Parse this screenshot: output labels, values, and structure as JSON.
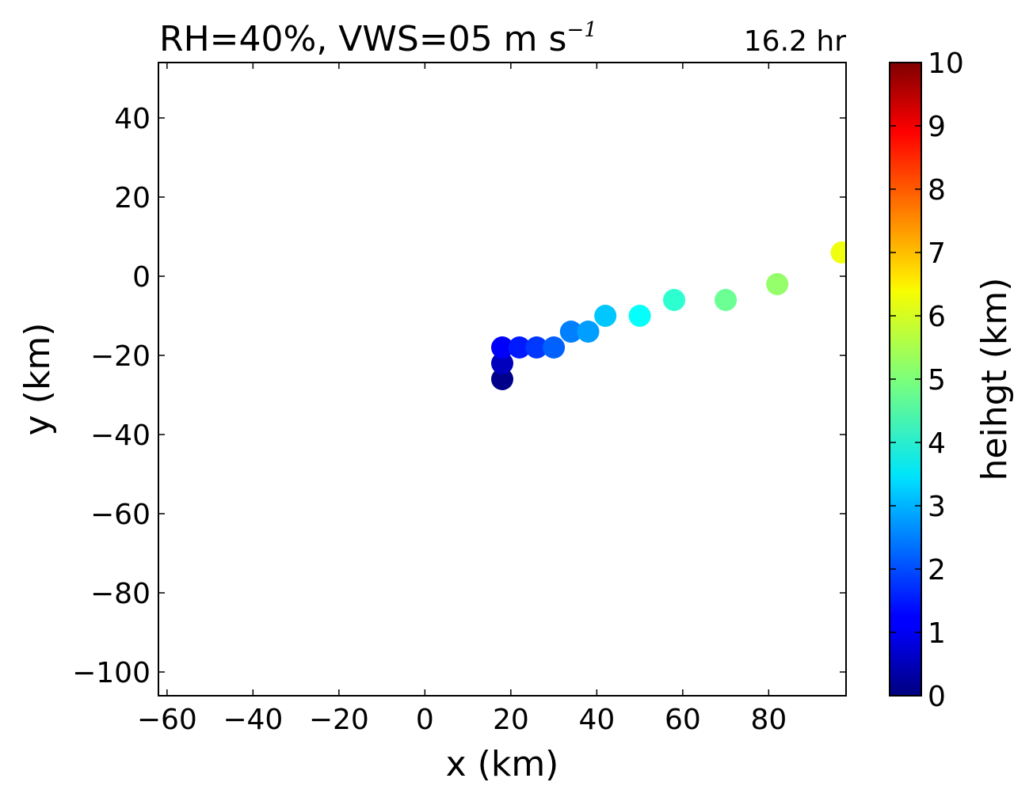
{
  "chart_data": {
    "type": "scatter",
    "title": "RH=40%, VWS=05 m s",
    "title_superscript": "−1",
    "time_label": "16.2 hr",
    "time_label_color": "#0000ff",
    "xlabel": "x (km)",
    "ylabel": "y (km)",
    "xlim": [
      -62,
      98
    ],
    "ylim": [
      -106,
      54
    ],
    "xticks": [
      -60,
      -40,
      -20,
      0,
      20,
      40,
      60,
      80
    ],
    "xtick_labels": [
      "−60",
      "−40",
      "−20",
      "0",
      "20",
      "40",
      "60",
      "80"
    ],
    "yticks": [
      40,
      20,
      0,
      -20,
      -40,
      -60,
      -80,
      -100
    ],
    "ytick_labels": [
      "40",
      "20",
      "0",
      "−20",
      "−40",
      "−60",
      "−80",
      "−100"
    ],
    "grid": false,
    "colormap": "jet",
    "colorbar": {
      "label": "heihgt (km)",
      "min": 0,
      "max": 10,
      "ticks": [
        0,
        1,
        2,
        3,
        4,
        5,
        6,
        7,
        8,
        9,
        10
      ],
      "tick_labels": [
        "0",
        "1",
        "2",
        "3",
        "4",
        "5",
        "6",
        "7",
        "8",
        "9",
        "10"
      ]
    },
    "points": [
      {
        "x": 18,
        "y": -26,
        "height": 0.1
      },
      {
        "x": 18,
        "y": -22,
        "height": 0.6
      },
      {
        "x": 18,
        "y": -18,
        "height": 1.2
      },
      {
        "x": 22,
        "y": -18,
        "height": 1.5
      },
      {
        "x": 26,
        "y": -18,
        "height": 1.8
      },
      {
        "x": 30,
        "y": -18,
        "height": 2.2
      },
      {
        "x": 34,
        "y": -14,
        "height": 2.5
      },
      {
        "x": 38,
        "y": -14,
        "height": 2.8
      },
      {
        "x": 42,
        "y": -10,
        "height": 3.2
      },
      {
        "x": 50,
        "y": -10,
        "height": 3.8
      },
      {
        "x": 58,
        "y": -6,
        "height": 4.2
      },
      {
        "x": 70,
        "y": -6,
        "height": 4.8
      },
      {
        "x": 82,
        "y": -2,
        "height": 5.2
      },
      {
        "x": 97,
        "y": 6,
        "height": 6.1
      }
    ]
  }
}
